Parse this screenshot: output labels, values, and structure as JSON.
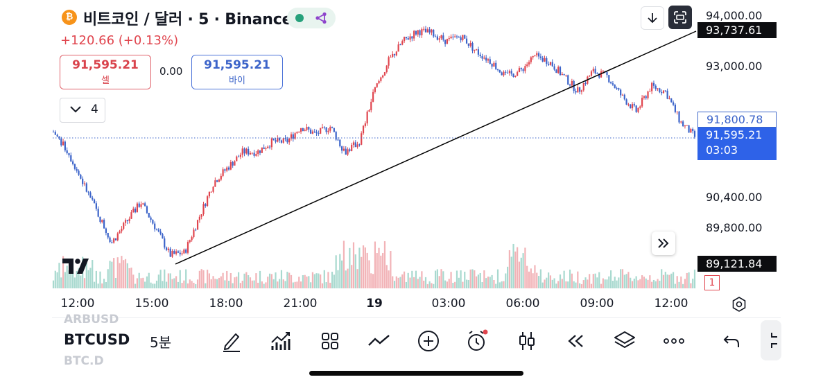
{
  "header": {
    "coin_icon": "bitcoin-icon",
    "coin_glyph": "₿",
    "title": "비트코인 / 달러 · 5 · Binance",
    "status_icons": [
      "market-open-dot-icon",
      "share-node-icon"
    ],
    "change": "+120.66 (+0.13%)",
    "sell_price": "91,595.21",
    "sell_label": "셀",
    "spread": "0.00",
    "buy_price": "91,595.21",
    "buy_label": "바이",
    "indicator_count": "4",
    "top_buttons": [
      "download-icon",
      "fullscreen-icon"
    ]
  },
  "colors": {
    "up": "#e0454e",
    "down": "#3b63c9",
    "accent": "#2e62e8",
    "volume_up": "#f2b3b7",
    "volume_down": "#a8d9cf"
  },
  "price_scale": {
    "labels": [
      "94,000.00",
      "93,000.00",
      "90,400.00",
      "89,800.00"
    ],
    "tag_line_value": "93,737.61",
    "tag_outline": "91,800.78",
    "last_price": "91,595.21",
    "countdown": "03:03",
    "tag_low": "89,121.84",
    "badge": "1"
  },
  "time_axis": {
    "labels": [
      "12:00",
      "15:00",
      "18:00",
      "21:00",
      "19",
      "03:00",
      "06:00",
      "09:00",
      "12:00"
    ]
  },
  "chart_data": {
    "type": "candlestick",
    "symbol": "BTCUSD",
    "interval": "5",
    "exchange": "Binance",
    "x_range": [
      "12:00",
      "13:30 (next day)"
    ],
    "y_range": [
      89100,
      94100
    ],
    "closes_approx": [
      91700,
      91300,
      90700,
      90100,
      89500,
      89900,
      90300,
      89800,
      89250,
      89300,
      90000,
      90700,
      91000,
      91300,
      91300,
      91500,
      91500,
      91800,
      91650,
      91800,
      91300,
      91500,
      92500,
      93100,
      93500,
      93700,
      93650,
      93500,
      93600,
      93300,
      93100,
      92800,
      92900,
      93200,
      93100,
      92800,
      92500,
      92900,
      92800,
      92400,
      92100,
      92600,
      92500,
      91900,
      91600
    ],
    "last_close": 91595.21,
    "trendline": {
      "from": [
        "15:40",
        89180
      ],
      "to": [
        "13:35",
        93737.61
      ]
    },
    "volume_peak_times": [
      "02:00",
      "08:00"
    ]
  },
  "toolbar": {
    "symbol": "BTCUSD",
    "interval": "5분",
    "ghost_above": "ARBUSD",
    "ghost_below": "BTC.D",
    "tools": [
      "draw-pen-icon",
      "indicators-icon",
      "grid-apps-icon",
      "compare-lines-icon",
      "add-circle-icon",
      "alarm-clock-icon",
      "candles-type-icon",
      "rewind-replay-icon",
      "layers-icon",
      "more-dots-icon",
      "undo-icon"
    ]
  }
}
